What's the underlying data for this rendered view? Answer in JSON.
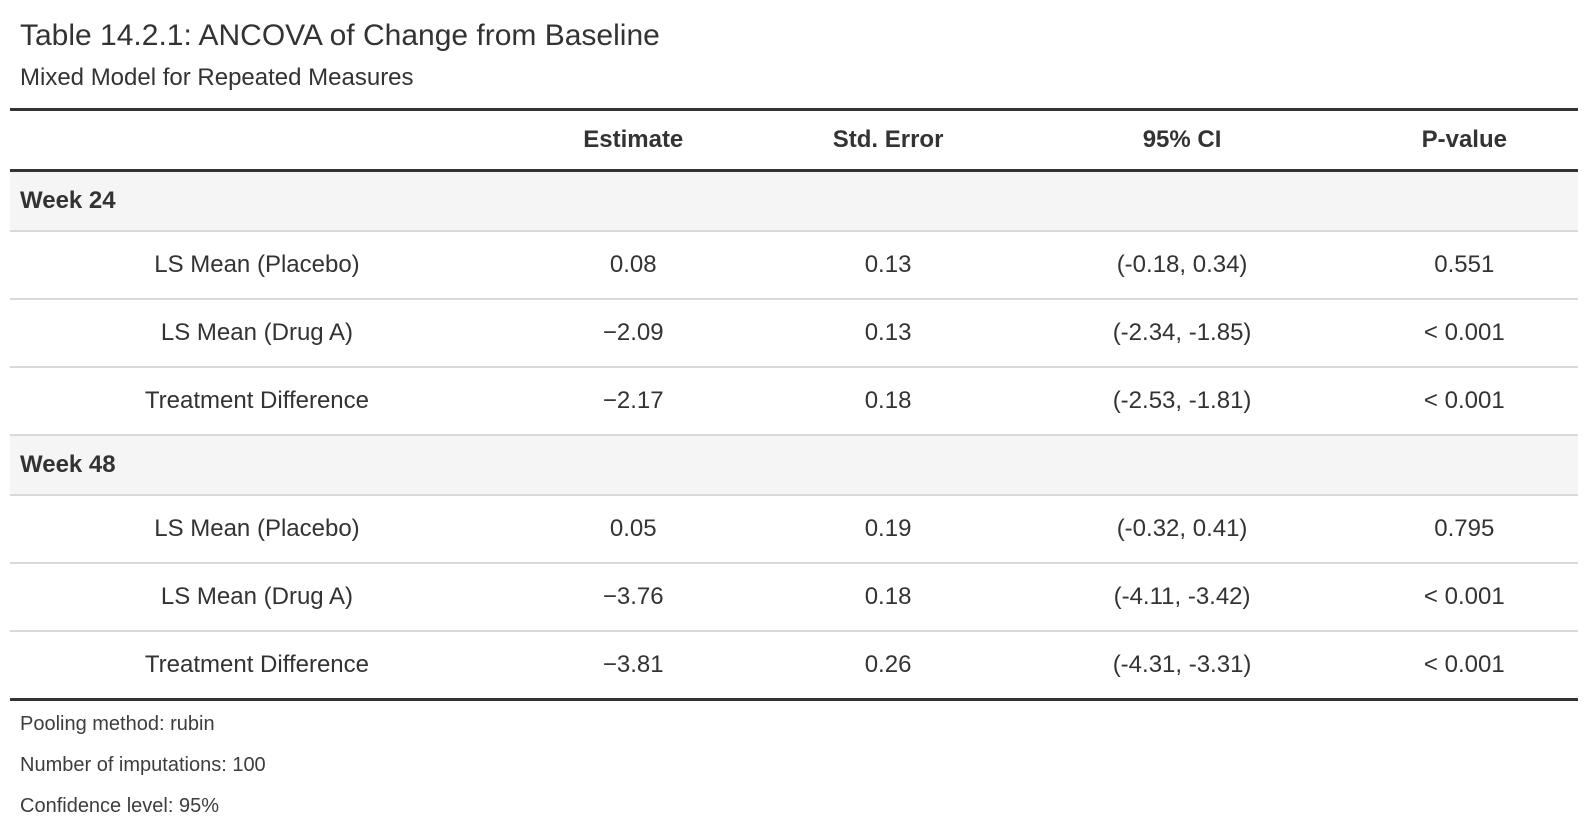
{
  "table": {
    "title": "Table 14.2.1: ANCOVA of Change from Baseline",
    "subtitle": "Mixed Model for Repeated Measures",
    "columns": {
      "stub": "",
      "estimate": "Estimate",
      "std_error": "Std. Error",
      "ci": "95% CI",
      "p_value": "P-value"
    },
    "groups": [
      {
        "label": "Week 24",
        "rows": [
          {
            "label": "LS Mean (Placebo)",
            "estimate": "0.08",
            "std_error": "0.13",
            "ci": "(-0.18, 0.34)",
            "p_value": "0.551"
          },
          {
            "label": "LS Mean (Drug A)",
            "estimate": "−2.09",
            "std_error": "0.13",
            "ci": "(-2.34, -1.85)",
            "p_value": "< 0.001"
          },
          {
            "label": "Treatment Difference",
            "estimate": "−2.17",
            "std_error": "0.18",
            "ci": "(-2.53, -1.81)",
            "p_value": "< 0.001"
          }
        ]
      },
      {
        "label": "Week 48",
        "rows": [
          {
            "label": "LS Mean (Placebo)",
            "estimate": "0.05",
            "std_error": "0.19",
            "ci": "(-0.32, 0.41)",
            "p_value": "0.795"
          },
          {
            "label": "LS Mean (Drug A)",
            "estimate": "−3.76",
            "std_error": "0.18",
            "ci": "(-4.11, -3.42)",
            "p_value": "< 0.001"
          },
          {
            "label": "Treatment Difference",
            "estimate": "−3.81",
            "std_error": "0.26",
            "ci": "(-4.31, -3.31)",
            "p_value": "< 0.001"
          }
        ]
      }
    ],
    "notes": [
      "Pooling method: rubin",
      "Number of imputations: 100",
      "Confidence level: 95%"
    ],
    "colors": {
      "text": "#333333",
      "border_dark": "#333333",
      "border_light": "#d9d9d9",
      "group_row_background": "#f5f5f5",
      "background": "#ffffff"
    }
  }
}
